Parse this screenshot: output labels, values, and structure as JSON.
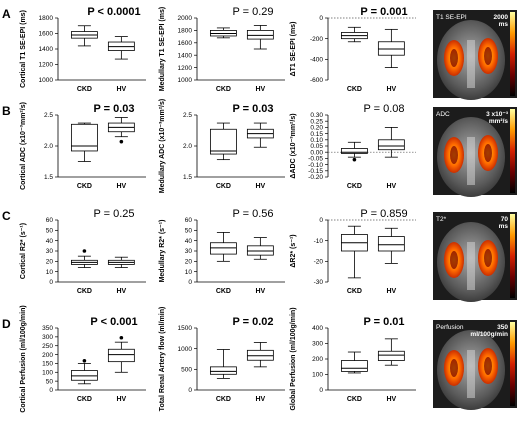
{
  "rows": [
    {
      "label": "A",
      "image": {
        "label": "T1 SE-EPI",
        "scale_top": "2000",
        "scale_unit": "ms"
      },
      "panels": [
        {
          "ylabel": "Cortical T1 SE-EPI (ms)",
          "p": "P < 0.0001",
          "bold": true,
          "ylim": [
            1000,
            1800
          ],
          "yticks": [
            "1000",
            "1200",
            "1400",
            "1600",
            "1800"
          ],
          "zero_line": false,
          "boxes": [
            {
              "group": "CKD",
              "min": 1440,
              "q1": 1540,
              "median": 1580,
              "q3": 1625,
              "max": 1700,
              "outliers": []
            },
            {
              "group": "HV",
              "min": 1270,
              "q1": 1380,
              "median": 1430,
              "q3": 1490,
              "max": 1560,
              "outliers": []
            }
          ]
        },
        {
          "ylabel": "Medullary T1 SE-EPI (ms)",
          "p": "P = 0.29",
          "bold": false,
          "ylim": [
            1000,
            2000
          ],
          "yticks": [
            "1000",
            "1200",
            "1400",
            "1600",
            "1800",
            "2000"
          ],
          "zero_line": false,
          "boxes": [
            {
              "group": "CKD",
              "min": 1680,
              "q1": 1710,
              "median": 1750,
              "q3": 1800,
              "max": 1840,
              "outliers": []
            },
            {
              "group": "HV",
              "min": 1500,
              "q1": 1660,
              "median": 1720,
              "q3": 1800,
              "max": 1880,
              "outliers": []
            }
          ]
        },
        {
          "ylabel": "ΔT1 SE-EPI (ms)",
          "p": "P = 0.001",
          "bold": true,
          "ylim": [
            -600,
            0
          ],
          "yticks": [
            "-600",
            "-400",
            "-200",
            "0"
          ],
          "zero_line": true,
          "boxes": [
            {
              "group": "CKD",
              "min": -230,
              "q1": -200,
              "median": -170,
              "q3": -140,
              "max": -90,
              "outliers": []
            },
            {
              "group": "HV",
              "min": -480,
              "q1": -360,
              "median": -300,
              "q3": -230,
              "max": -110,
              "outliers": []
            }
          ]
        }
      ]
    },
    {
      "label": "B",
      "image": {
        "label": "ADC",
        "scale_top": "3 x10⁻³",
        "scale_unit": "mm²/s"
      },
      "panels": [
        {
          "ylabel": "Cortical ADC (x10⁻³mm²/s)",
          "p": "P = 0.03",
          "bold": true,
          "ylim": [
            1.5,
            2.5
          ],
          "yticks": [
            "1.5",
            "2.0",
            "2.5"
          ],
          "zero_line": false,
          "boxes": [
            {
              "group": "CKD",
              "min": 1.75,
              "q1": 1.92,
              "median": 2.0,
              "q3": 2.35,
              "max": 2.37,
              "outliers": []
            },
            {
              "group": "HV",
              "min": 2.15,
              "q1": 2.23,
              "median": 2.3,
              "q3": 2.37,
              "max": 2.46,
              "outliers": [
                2.07
              ]
            }
          ]
        },
        {
          "ylabel": "Medullary ADC (x10⁻³mm²/s)",
          "p": "P = 0.03",
          "bold": true,
          "ylim": [
            1.5,
            2.5
          ],
          "yticks": [
            "1.5",
            "2.0",
            "2.5"
          ],
          "zero_line": false,
          "boxes": [
            {
              "group": "CKD",
              "min": 1.78,
              "q1": 1.87,
              "median": 1.92,
              "q3": 2.27,
              "max": 2.37,
              "outliers": []
            },
            {
              "group": "HV",
              "min": 1.98,
              "q1": 2.13,
              "median": 2.2,
              "q3": 2.27,
              "max": 2.37,
              "outliers": []
            }
          ]
        },
        {
          "ylabel": "ΔADC (x10⁻³mm²/s)",
          "p": "P = 0.08",
          "bold": false,
          "ylim": [
            -0.2,
            0.3
          ],
          "yticks": [
            "-0.20",
            "-0.15",
            "-0.10",
            "-0.05",
            "0.00",
            "0.05",
            "0.10",
            "0.15",
            "0.20",
            "0.25",
            "0.30"
          ],
          "zero_line": true,
          "boxes": [
            {
              "group": "CKD",
              "min": -0.04,
              "q1": -0.01,
              "median": 0.0,
              "q3": 0.03,
              "max": 0.08,
              "outliers": [
                -0.06
              ]
            },
            {
              "group": "HV",
              "min": -0.04,
              "q1": 0.02,
              "median": 0.05,
              "q3": 0.1,
              "max": 0.2,
              "outliers": []
            }
          ]
        }
      ]
    },
    {
      "label": "C",
      "image": {
        "label": "T2*",
        "scale_top": "70",
        "scale_unit": "ms"
      },
      "panels": [
        {
          "ylabel": "Cortical R2* (s⁻¹)",
          "p": "P = 0.25",
          "bold": false,
          "ylim": [
            0,
            60
          ],
          "yticks": [
            "0",
            "10",
            "20",
            "30",
            "40",
            "50",
            "60"
          ],
          "zero_line": false,
          "boxes": [
            {
              "group": "CKD",
              "min": 14,
              "q1": 17,
              "median": 19,
              "q3": 21,
              "max": 25,
              "outliers": [
                30
              ]
            },
            {
              "group": "HV",
              "min": 14,
              "q1": 17,
              "median": 19,
              "q3": 21,
              "max": 24,
              "outliers": []
            }
          ]
        },
        {
          "ylabel": "Medullary R2* (s⁻¹)",
          "p": "P = 0.56",
          "bold": false,
          "ylim": [
            0,
            60
          ],
          "yticks": [
            "0",
            "10",
            "20",
            "30",
            "40",
            "50",
            "60"
          ],
          "zero_line": false,
          "boxes": [
            {
              "group": "CKD",
              "min": 20,
              "q1": 27,
              "median": 33,
              "q3": 38,
              "max": 48,
              "outliers": []
            },
            {
              "group": "HV",
              "min": 22,
              "q1": 26,
              "median": 30,
              "q3": 35,
              "max": 43,
              "outliers": []
            }
          ]
        },
        {
          "ylabel": "ΔR2* (s⁻¹)",
          "p": "P = 0.859",
          "bold": false,
          "ylim": [
            -30,
            0
          ],
          "yticks": [
            "-30",
            "-20",
            "-10",
            "0"
          ],
          "zero_line": true,
          "boxes": [
            {
              "group": "CKD",
              "min": -28,
              "q1": -15,
              "median": -11,
              "q3": -7,
              "max": -3,
              "outliers": []
            },
            {
              "group": "HV",
              "min": -21,
              "q1": -15,
              "median": -12,
              "q3": -8,
              "max": -4,
              "outliers": []
            }
          ]
        }
      ]
    },
    {
      "label": "D",
      "image": {
        "label": "Perfusion",
        "scale_top": "350",
        "scale_unit": "ml/100g/min"
      },
      "panels": [
        {
          "ylabel": "Cortical Perfusion (ml/100g/min)",
          "p": "P < 0.001",
          "bold": true,
          "ylim": [
            0,
            350
          ],
          "yticks": [
            "0",
            "50",
            "100",
            "150",
            "200",
            "250",
            "300",
            "350"
          ],
          "zero_line": false,
          "boxes": [
            {
              "group": "CKD",
              "min": 35,
              "q1": 55,
              "median": 80,
              "q3": 110,
              "max": 150,
              "outliers": [
                165
              ]
            },
            {
              "group": "HV",
              "min": 100,
              "q1": 160,
              "median": 200,
              "q3": 230,
              "max": 270,
              "outliers": [
                295
              ]
            }
          ]
        },
        {
          "ylabel": "Total Renal Artery flow (ml/min)",
          "p": "P = 0.02",
          "bold": true,
          "ylim": [
            0,
            1500
          ],
          "yticks": [
            "0",
            "500",
            "1000",
            "1500"
          ],
          "zero_line": false,
          "boxes": [
            {
              "group": "CKD",
              "min": 280,
              "q1": 380,
              "median": 450,
              "q3": 560,
              "max": 980,
              "outliers": []
            },
            {
              "group": "HV",
              "min": 560,
              "q1": 720,
              "median": 830,
              "q3": 960,
              "max": 1150,
              "outliers": []
            }
          ]
        },
        {
          "ylabel": "Global Perfusion (ml/100g/min)",
          "p": "P = 0.01",
          "bold": true,
          "ylim": [
            0,
            400
          ],
          "yticks": [
            "0",
            "100",
            "200",
            "300",
            "400"
          ],
          "zero_line": false,
          "boxes": [
            {
              "group": "CKD",
              "min": 110,
              "q1": 120,
              "median": 140,
              "q3": 190,
              "max": 245,
              "outliers": []
            },
            {
              "group": "HV",
              "min": 160,
              "q1": 190,
              "median": 225,
              "q3": 250,
              "max": 330,
              "outliers": []
            }
          ]
        }
      ]
    }
  ],
  "groups": [
    "CKD",
    "HV"
  ]
}
